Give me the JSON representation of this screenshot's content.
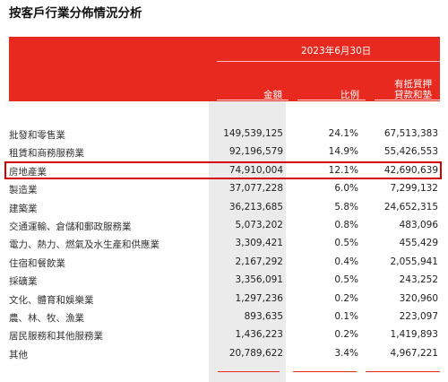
{
  "title": "按客戶行業分佈情況分析",
  "header": {
    "date": "2023年6月30日",
    "sub": "有抵質押",
    "col_amount": "金額",
    "col_ratio": "比例",
    "col_secured": "貸款和墊款"
  },
  "rows": [
    {
      "label": "批發和零售業",
      "amount": "149,539,125",
      "ratio": "24.1%",
      "secured": "67,513,383"
    },
    {
      "label": "租賃和商務服務業",
      "amount": "92,196,579",
      "ratio": "14.9%",
      "secured": "55,426,553"
    },
    {
      "label": "房地產業",
      "amount": "74,910,004",
      "ratio": "12.1%",
      "secured": "42,690,639"
    },
    {
      "label": "製造業",
      "amount": "37,077,228",
      "ratio": "6.0%",
      "secured": "7,299,132"
    },
    {
      "label": "建築業",
      "amount": "36,213,685",
      "ratio": "5.8%",
      "secured": "24,652,315"
    },
    {
      "label": "交通運輸、倉儲和郵政服務業",
      "amount": "5,073,202",
      "ratio": "0.8%",
      "secured": "483,096"
    },
    {
      "label": "電力、熱力、燃氣及水生產和供應業",
      "amount": "3,309,421",
      "ratio": "0.5%",
      "secured": "455,429"
    },
    {
      "label": "住宿和餐飲業",
      "amount": "2,167,292",
      "ratio": "0.4%",
      "secured": "2,055,941"
    },
    {
      "label": "採礦業",
      "amount": "3,356,091",
      "ratio": "0.5%",
      "secured": "243,252"
    },
    {
      "label": "文化、體育和娛樂業",
      "amount": "1,297,236",
      "ratio": "0.2%",
      "secured": "320,960"
    },
    {
      "label": "農、林、牧、漁業",
      "amount": "893,635",
      "ratio": "0.1%",
      "secured": "223,097"
    },
    {
      "label": "居民服務和其他服務業",
      "amount": "1,436,223",
      "ratio": "0.2%",
      "secured": "1,419,893"
    },
    {
      "label": "其他",
      "amount": "20,789,622",
      "ratio": "3.4%",
      "secured": "4,967,221"
    }
  ]
}
